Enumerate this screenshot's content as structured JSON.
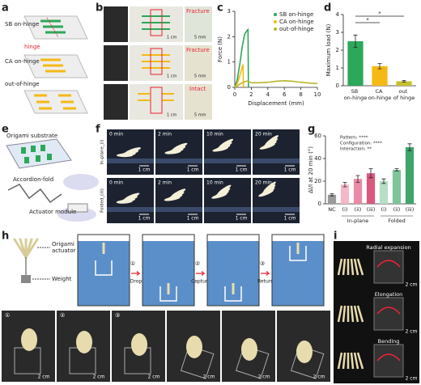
{
  "panels": {
    "a": {
      "letter": "a",
      "labels": [
        "SB on-hinge",
        "hinge",
        "CA on-hinge",
        "out-of-hinge"
      ]
    },
    "b": {
      "letter": "b",
      "labels": [
        "Fracture",
        "Fracture",
        "Intact"
      ],
      "scale_cm": "1 cm",
      "scale_mm": "5 mm"
    },
    "c": {
      "letter": "c"
    },
    "d": {
      "letter": "d"
    },
    "e": {
      "letter": "e",
      "labels": [
        "Origami substrate",
        "Accordion-fold",
        "Actuator module"
      ]
    },
    "f": {
      "letter": "f",
      "times": [
        "0 min",
        "2 min",
        "10 min",
        "20 min"
      ],
      "rows": [
        "In-plane_(i)",
        "Folded_(iii)"
      ],
      "scale": "1 cm"
    },
    "g": {
      "letter": "g"
    },
    "h": {
      "letter": "h",
      "labels": [
        "Origami actuator",
        "Weight"
      ],
      "steps": [
        "Drop",
        "Capture",
        "Return"
      ],
      "step_marks": [
        "①",
        "②",
        "③"
      ],
      "scale": "2 cm"
    },
    "i": {
      "letter": "i",
      "labels": [
        "Radial expansion",
        "Elongation",
        "Bending"
      ],
      "scale": "2 cm"
    }
  },
  "chart_data": [
    {
      "type": "line",
      "xlabel": "Displacement (mm)",
      "ylabel": "Force (N)",
      "xlim": [
        0,
        10
      ],
      "xticks": [
        0,
        2,
        4,
        6,
        8,
        10
      ],
      "ylim": [
        0,
        3
      ],
      "yticks": [
        0,
        1,
        2,
        3
      ],
      "legend": "upper right",
      "series": [
        {
          "name": "SB on-hinge",
          "color": "#2ca85a",
          "x": [
            0,
            0.3,
            0.6,
            0.9,
            1.2,
            1.5,
            1.6,
            1.65
          ],
          "values": [
            0,
            0.3,
            0.9,
            1.6,
            2.1,
            2.25,
            2.28,
            0
          ]
        },
        {
          "name": "CA on-hinge",
          "color": "#f5b914",
          "x": [
            0,
            0.3,
            0.6,
            0.9,
            1.0,
            1.05
          ],
          "values": [
            0,
            0.15,
            0.45,
            0.8,
            0.9,
            0
          ]
        },
        {
          "name": "out-of-hinge",
          "color": "#b9b628",
          "x": [
            0,
            0.5,
            1,
            1.5,
            2,
            3,
            4,
            5,
            6,
            7,
            8,
            9,
            10
          ],
          "values": [
            0,
            0.1,
            0.2,
            0.25,
            0.18,
            0.18,
            0.2,
            0.24,
            0.26,
            0.24,
            0.2,
            0.17,
            0.15
          ]
        }
      ]
    },
    {
      "type": "bar",
      "ylabel": "Maximum load (N)",
      "categories": [
        "SB on-hinge",
        "CA on-hinge",
        "out of hinge"
      ],
      "values": [
        2.5,
        1.1,
        0.25
      ],
      "errors": [
        0.35,
        0.15,
        0.05
      ],
      "colors": [
        "#2ca85a",
        "#f5b914",
        "#c8c02c"
      ],
      "ylim": [
        0,
        4
      ],
      "yticks": [
        0,
        1,
        2,
        3,
        4
      ],
      "significance": [
        "*",
        "*"
      ]
    },
    {
      "type": "bar",
      "ylabel": "Δl/l at 20 min (°)",
      "categories": [
        "NC",
        "(i)",
        "(ii)",
        "(iii)",
        "(i)",
        "(ii)",
        "(iii)"
      ],
      "values": [
        8,
        17,
        22,
        27,
        20,
        30,
        50
      ],
      "errors": [
        1,
        2,
        3,
        4,
        2,
        1,
        3
      ],
      "colors": [
        "#9a9a9a",
        "#f4b8c8",
        "#e98aa6",
        "#d9587e",
        "#b7dfc5",
        "#7ec59a",
        "#3fa56b"
      ],
      "ylim": [
        0,
        60
      ],
      "yticks": [
        0,
        20,
        40,
        60
      ],
      "groups": [
        "In-plane",
        "Folded"
      ],
      "annotations": [
        "Pattern: ****",
        "Configuration: ****",
        "Interaction: **"
      ]
    }
  ]
}
